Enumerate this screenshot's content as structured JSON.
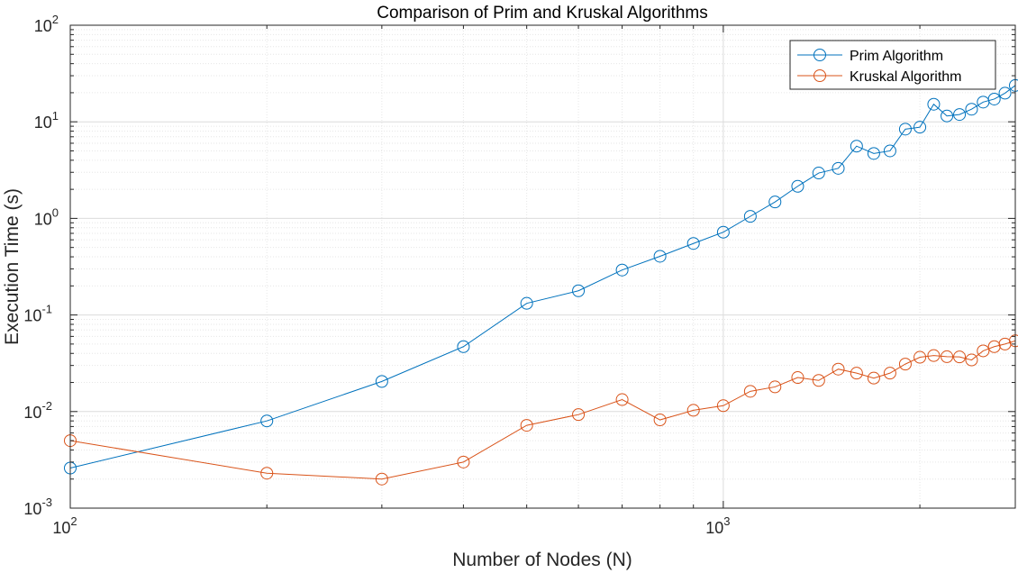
{
  "chart_data": {
    "type": "line",
    "title": "Comparison of Prim and Kruskal Algorithms",
    "xlabel": "Number of Nodes (N)",
    "ylabel": "Execution Time (s)",
    "xscale": "log",
    "yscale": "log",
    "xlim": [
      100,
      2800
    ],
    "ylim": [
      0.001,
      100
    ],
    "grid": true,
    "minor_grid": true,
    "legend_location": "top-right",
    "x_tick_labels": [
      {
        "value": 100,
        "base": "10",
        "exp": "2"
      },
      {
        "value": 1000,
        "base": "10",
        "exp": "3"
      }
    ],
    "y_tick_labels": [
      {
        "value": 0.001,
        "base": "10",
        "exp": "-3"
      },
      {
        "value": 0.01,
        "base": "10",
        "exp": "-2"
      },
      {
        "value": 0.1,
        "base": "10",
        "exp": "-1"
      },
      {
        "value": 1,
        "base": "10",
        "exp": "0"
      },
      {
        "value": 10,
        "base": "10",
        "exp": "1"
      },
      {
        "value": 100,
        "base": "10",
        "exp": "2"
      }
    ],
    "x": [
      100,
      200,
      300,
      400,
      500,
      600,
      700,
      800,
      900,
      1000,
      1100,
      1200,
      1300,
      1400,
      1500,
      1600,
      1700,
      1800,
      1900,
      2000,
      2100,
      2200,
      2300,
      2400,
      2500,
      2600,
      2700,
      2800
    ],
    "series": [
      {
        "name": "Prim Algorithm",
        "color": "#0072BD",
        "marker": "circle",
        "values": [
          0.0026,
          0.008,
          0.0205,
          0.047,
          0.132,
          0.178,
          0.292,
          0.405,
          0.55,
          0.72,
          1.05,
          1.48,
          2.15,
          2.95,
          3.3,
          5.6,
          4.7,
          5.0,
          8.4,
          8.8,
          15.2,
          11.5,
          11.9,
          13.5,
          16.0,
          17.2,
          19.8,
          23.8
        ]
      },
      {
        "name": "Kruskal Algorithm",
        "color": "#D95319",
        "marker": "circle",
        "values": [
          0.005,
          0.0023,
          0.002,
          0.003,
          0.0072,
          0.0093,
          0.0133,
          0.0082,
          0.0103,
          0.0115,
          0.0162,
          0.018,
          0.0225,
          0.021,
          0.0275,
          0.025,
          0.0222,
          0.025,
          0.031,
          0.0365,
          0.038,
          0.037,
          0.0368,
          0.0342,
          0.0425,
          0.047,
          0.05,
          0.054
        ]
      }
    ]
  }
}
